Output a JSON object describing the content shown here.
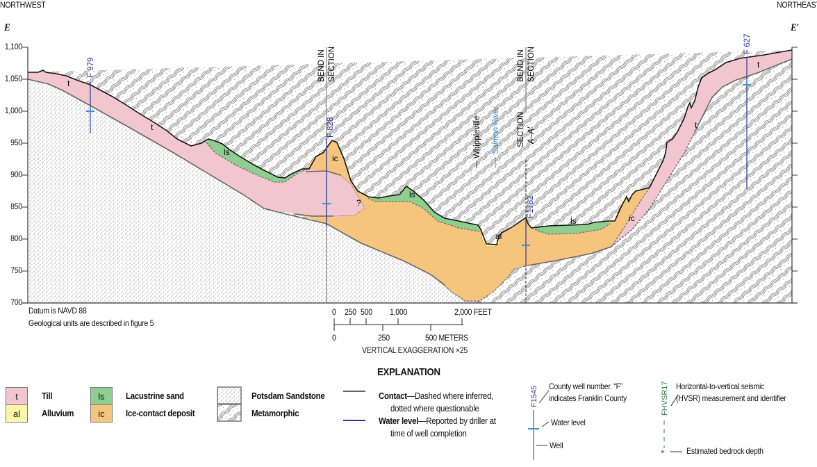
{
  "header": {
    "left_direction": "NORTHWEST",
    "right_direction": "NORTHEAST",
    "left_label": "E",
    "right_label": "E′"
  },
  "axis": {
    "unit": "feet",
    "elevation_ticks": [
      "1,100",
      "1,050",
      "1,000",
      "950",
      "900",
      "850",
      "800",
      "750",
      "700"
    ],
    "range": [
      700,
      1100
    ]
  },
  "units": {
    "t": "t",
    "ls": "ls",
    "ic": "ic",
    "al": "al",
    "unknown": "?"
  },
  "wells": {
    "f979": "F 979",
    "f828": "F 828",
    "f1782": "F1782",
    "f627": "F 627"
  },
  "annotations": {
    "bend1a": "BEND IN",
    "bend1b": "SECTION",
    "bend2a": "BEND IN",
    "bend2b": "SECTION",
    "section_a": "SECTION",
    "section_b": "A–A′",
    "whippleville": "Whippleville",
    "salmon_river": "Salmon River"
  },
  "notes": {
    "datum": "Datum is NAVD 88",
    "units_note": "Geological units are described in figure 5"
  },
  "scale": {
    "feet": [
      "0",
      "250",
      "500",
      "1,000",
      "2,000 FEET"
    ],
    "meters": [
      "0",
      "250",
      "500 METERS"
    ],
    "exaggeration": "VERTICAL EXAGGERATION ×25"
  },
  "legend": {
    "title": "EXPLANATION",
    "till": {
      "sym": "t",
      "label": "Till"
    },
    "alluvium": {
      "sym": "al",
      "label": "Alluvium"
    },
    "lacustrine": {
      "sym": "ls",
      "label": "Lacustrine sand"
    },
    "icecontact": {
      "sym": "ic",
      "label": "Ice-contact deposit"
    },
    "potsdam": "Potsdam Sandstone",
    "metamorphic": "Metamorphic",
    "contact_bold": "Contact",
    "contact_text1": "—Dashed where inferred,",
    "contact_text2": "dotted where questionable",
    "water_bold": "Water level",
    "water_text1": "—Reported by driller at",
    "water_text2": "time of well completion",
    "well_id": "F1545",
    "well_num1": "County well number. “F”",
    "well_num2": "indicates Franklin County",
    "water_level": "Water level",
    "well": "Well",
    "hvsr_id": "FHVSR17",
    "hvsr1": "Horizontal-to-vertical seismic",
    "hvsr2": "(HVSR) measurement and identifier",
    "bedrock": "Estimated bedrock depth"
  },
  "colors": {
    "till": "#f2c6ce",
    "alluvium": "#fdf6a8",
    "lacustrine": "#8fce8f",
    "icecontact": "#f5c57e",
    "well": "#2b3a9a",
    "water_level": "#3a8fd0",
    "hvsr": "#2e7d4f"
  }
}
